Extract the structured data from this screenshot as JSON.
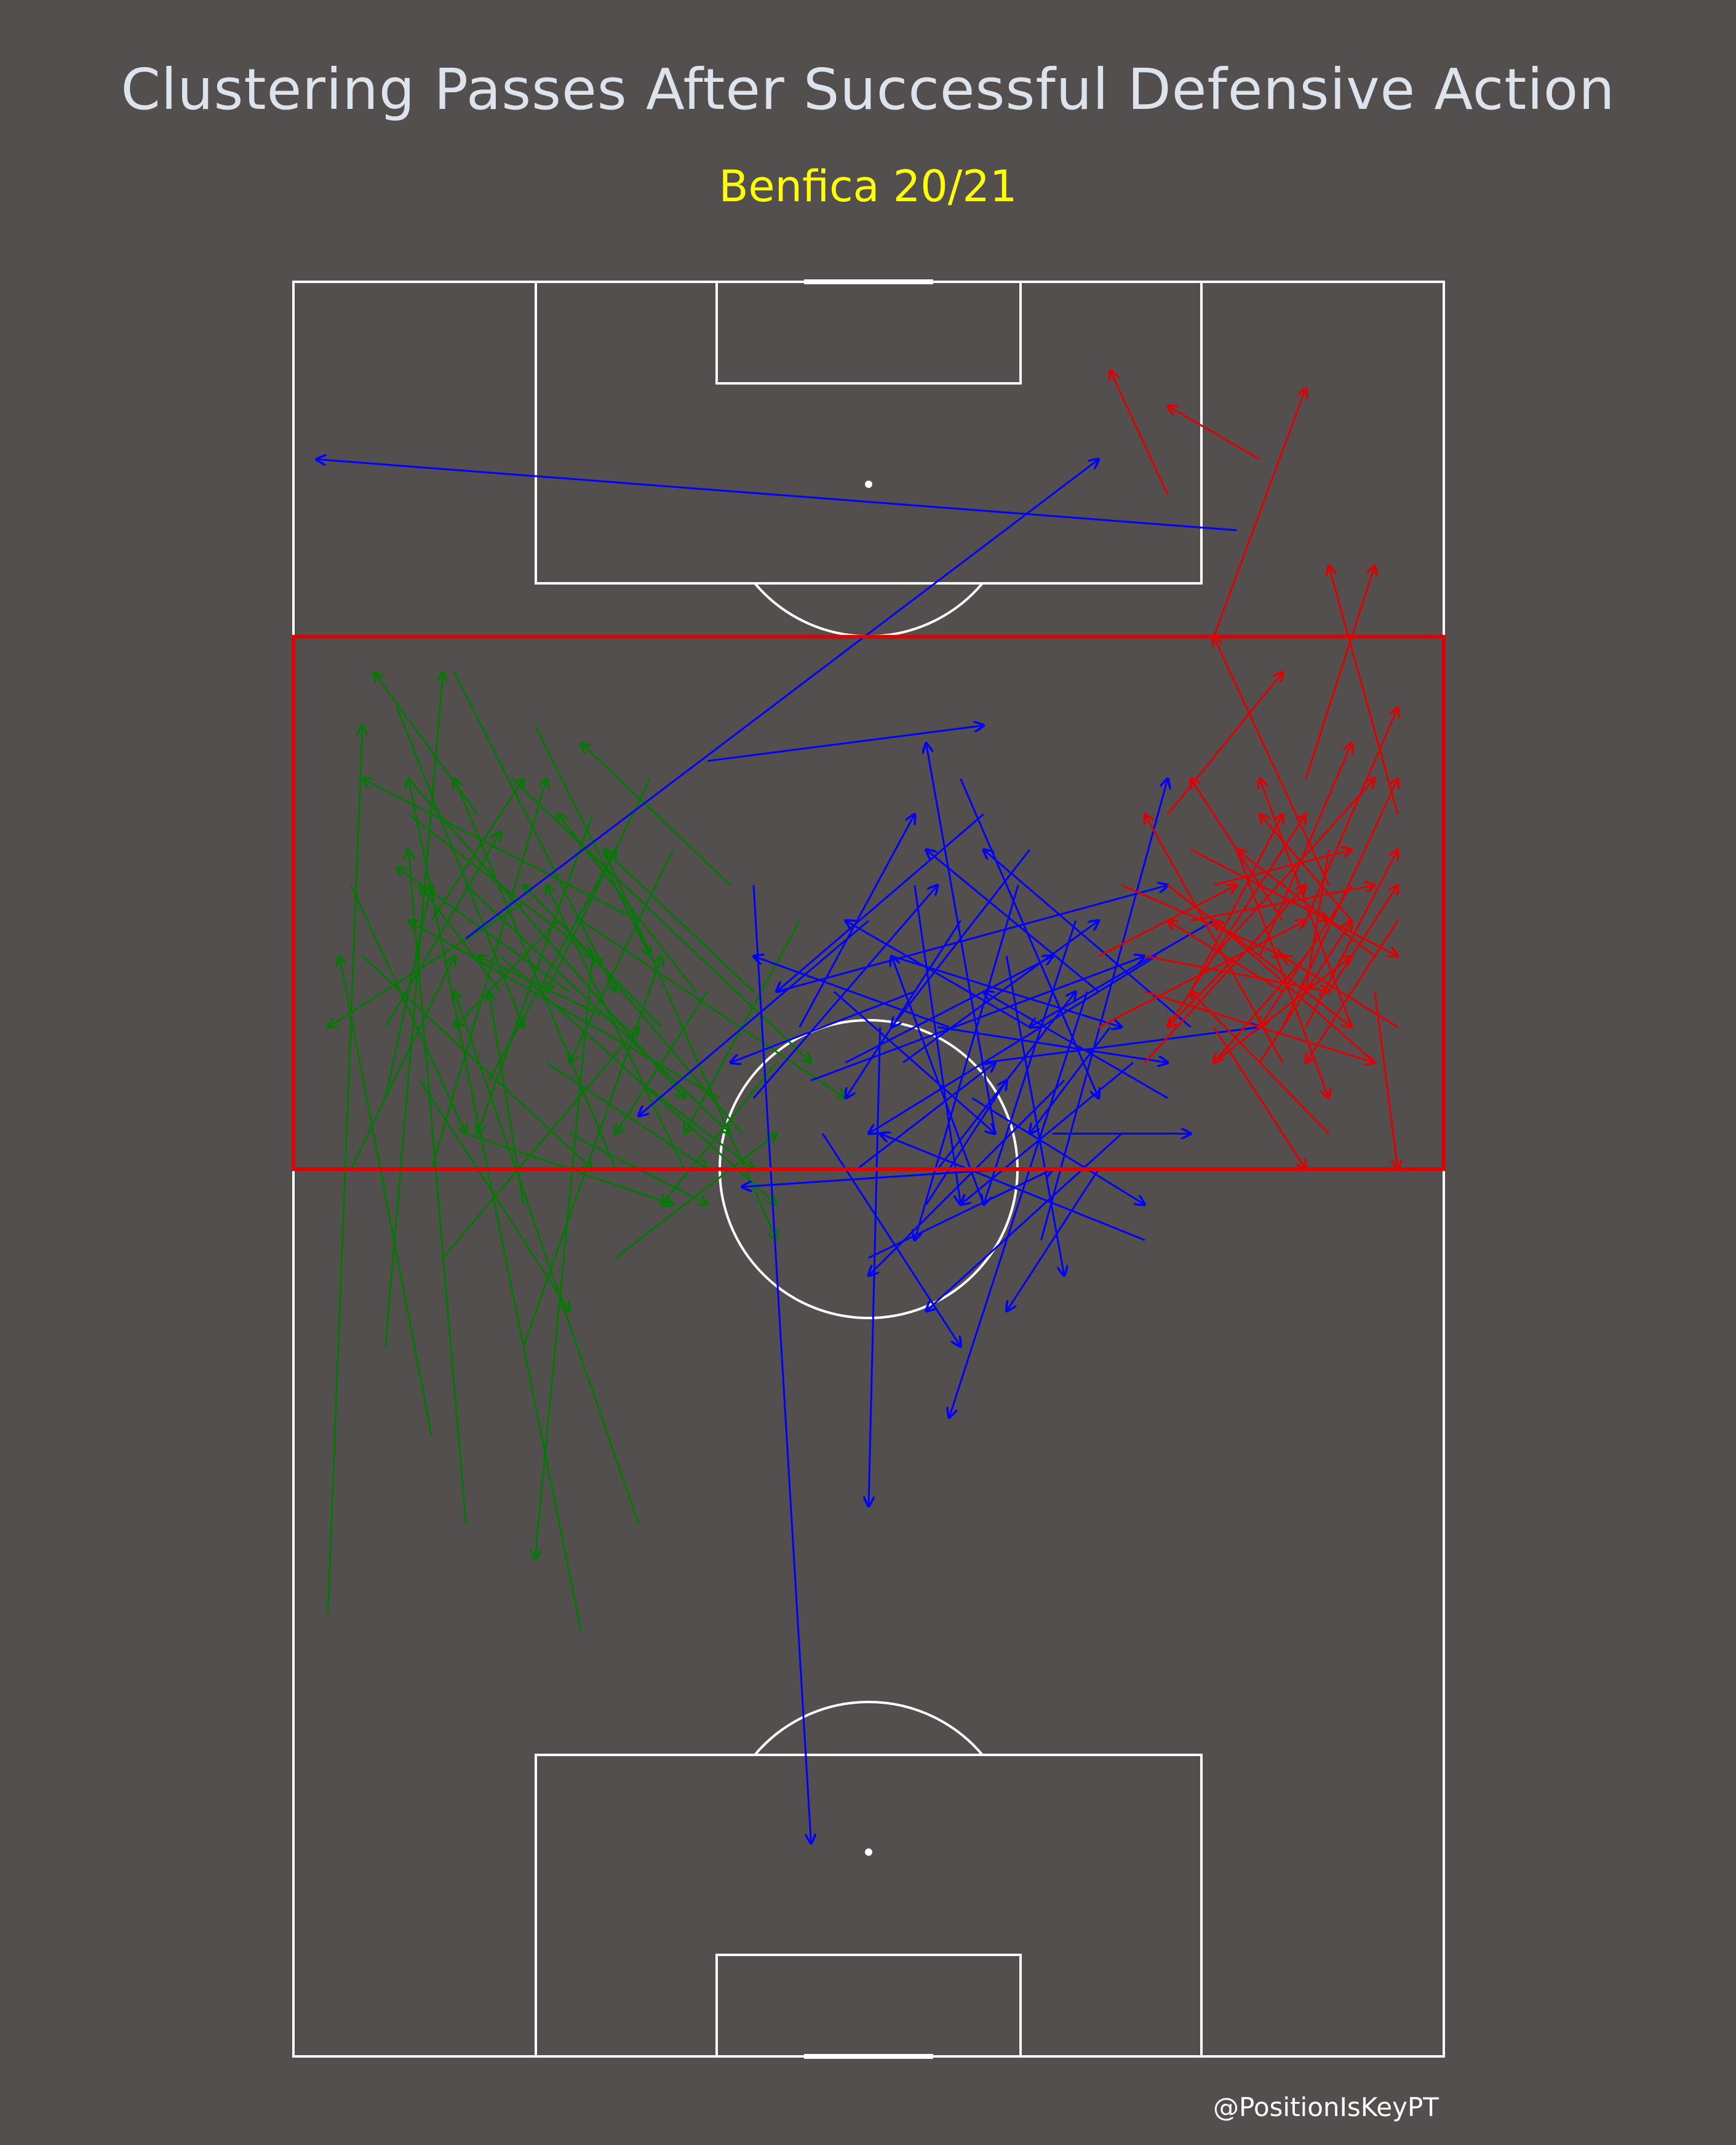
{
  "chart": {
    "title": "Clustering Passes After Successful Defensive Action",
    "subtitle": "Benfica 20/21",
    "credit": "@PositionIsKeyPT"
  },
  "colors": {
    "background": "#544f4f",
    "pitch_lines": "#ffffff",
    "title": "#dde3ea",
    "subtitle": "#ffff00",
    "zone": "#e00000"
  },
  "chart_data": {
    "type": "scatter",
    "pitch": {
      "width": 100,
      "length": 100,
      "orientation": "vertical, attacking upward"
    },
    "highlight_zone": {
      "x_range": [
        0,
        100
      ],
      "y_range": [
        50,
        80
      ]
    },
    "series": [
      {
        "color": "#007a00",
        "passes": [
          [
            3,
            25,
            6,
            75
          ],
          [
            12,
            35,
            4,
            62
          ],
          [
            8,
            40,
            13,
            78
          ],
          [
            15,
            30,
            10,
            68
          ],
          [
            5,
            50,
            14,
            62
          ],
          [
            25,
            24,
            10,
            72
          ],
          [
            8,
            58,
            18,
            69
          ],
          [
            20,
            65,
            3,
            58
          ],
          [
            12,
            50,
            22,
            72
          ],
          [
            30,
            30,
            14,
            60
          ],
          [
            16,
            70,
            7,
            78
          ],
          [
            6,
            62,
            26,
            50
          ],
          [
            17,
            55,
            28,
            68
          ],
          [
            10,
            72,
            34,
            54
          ],
          [
            24,
            60,
            9,
            67
          ],
          [
            13,
            45,
            30,
            58
          ],
          [
            28,
            50,
            14,
            72
          ],
          [
            20,
            40,
            32,
            62
          ],
          [
            5,
            66,
            15,
            52
          ],
          [
            30,
            64,
            6,
            72
          ],
          [
            22,
            56,
            36,
            50
          ],
          [
            9,
            76,
            20,
            58
          ],
          [
            26,
            70,
            16,
            52
          ],
          [
            14,
            78,
            28,
            60
          ],
          [
            32,
            58,
            20,
            66
          ],
          [
            18,
            62,
            42,
            48
          ],
          [
            11,
            55,
            24,
            42
          ],
          [
            27,
            68,
            42,
            46
          ],
          [
            35,
            60,
            23,
            70
          ],
          [
            15,
            66,
            38,
            52
          ],
          [
            8,
            54,
            12,
            66
          ],
          [
            21,
            75,
            31,
            62
          ],
          [
            26,
            62,
            21,
            28
          ],
          [
            37,
            54,
            10,
            64
          ],
          [
            20,
            48,
            17,
            60
          ],
          [
            30,
            55,
            40,
            50
          ],
          [
            12,
            64,
            20,
            72
          ],
          [
            33,
            68,
            24,
            56
          ],
          [
            24,
            52,
            36,
            48
          ],
          [
            19,
            72,
            45,
            56
          ],
          [
            40,
            60,
            27,
            68
          ],
          [
            29,
            58,
            16,
            62
          ],
          [
            34,
            50,
            22,
            66
          ],
          [
            10,
            70,
            26,
            62
          ],
          [
            42,
            56,
            32,
            48
          ],
          [
            23,
            64,
            14,
            58
          ],
          [
            38,
            66,
            25,
            74
          ],
          [
            15,
            52,
            33,
            48
          ],
          [
            31,
            72,
            22,
            60
          ],
          [
            28,
            45,
            42,
            52
          ],
          [
            25,
            64,
            48,
            54
          ],
          [
            36,
            60,
            28,
            52
          ],
          [
            18,
            60,
            11,
            66
          ],
          [
            39,
            52,
            26,
            62
          ],
          [
            44,
            64,
            34,
            52
          ]
        ]
      },
      {
        "color": "#0000ff",
        "passes": [
          [
            40,
            66,
            45,
            12
          ],
          [
            51,
            58,
            50,
            31
          ],
          [
            82,
            86,
            2,
            90
          ],
          [
            15,
            63,
            70,
            90
          ],
          [
            36,
            73,
            60,
            75
          ],
          [
            50,
            64,
            30,
            53
          ],
          [
            62,
            50,
            39,
            49
          ],
          [
            74,
            46,
            51,
            52
          ],
          [
            48,
            56,
            66,
            62
          ],
          [
            60,
            70,
            42,
            60
          ],
          [
            70,
            60,
            55,
            68
          ],
          [
            45,
            55,
            74,
            62
          ],
          [
            55,
            48,
            62,
            55
          ],
          [
            67,
            55,
            50,
            44
          ],
          [
            78,
            58,
            60,
            68
          ],
          [
            58,
            72,
            70,
            54
          ],
          [
            50,
            45,
            66,
            50
          ],
          [
            64,
            58,
            48,
            64
          ],
          [
            42,
            60,
            76,
            66
          ],
          [
            72,
            52,
            55,
            42
          ],
          [
            54,
            60,
            38,
            56
          ],
          [
            68,
            64,
            60,
            48
          ],
          [
            60,
            56,
            84,
            58
          ],
          [
            46,
            52,
            58,
            40
          ],
          [
            75,
            62,
            50,
            52
          ],
          [
            56,
            50,
            68,
            60
          ],
          [
            63,
            66,
            54,
            46
          ],
          [
            40,
            54,
            56,
            66
          ],
          [
            70,
            50,
            62,
            42
          ],
          [
            52,
            62,
            72,
            58
          ],
          [
            65,
            46,
            76,
            72
          ],
          [
            57,
            58,
            40,
            62
          ],
          [
            80,
            64,
            64,
            58
          ],
          [
            49,
            50,
            61,
            56
          ],
          [
            73,
            56,
            58,
            48
          ],
          [
            58,
            64,
            48,
            54
          ],
          [
            66,
            52,
            78,
            52
          ],
          [
            44,
            58,
            54,
            70
          ],
          [
            62,
            62,
            67,
            44
          ],
          [
            76,
            54,
            60,
            60
          ],
          [
            53,
            56,
            70,
            64
          ],
          [
            60,
            48,
            52,
            62
          ],
          [
            69,
            60,
            57,
            36
          ],
          [
            47,
            60,
            61,
            52
          ],
          [
            59,
            54,
            74,
            48
          ],
          [
            64,
            68,
            52,
            58
          ],
          [
            56,
            58,
            76,
            56
          ],
          [
            61,
            52,
            55,
            74
          ],
          [
            71,
            58,
            64,
            52
          ],
          [
            54,
            66,
            58,
            48
          ]
        ]
      },
      {
        "color": "#e00000",
        "passes": [
          [
            76,
            88,
            71,
            95
          ],
          [
            84,
            90,
            76,
            93
          ],
          [
            80,
            80,
            88,
            94
          ],
          [
            94,
            60,
            96,
            50
          ],
          [
            88,
            72,
            94,
            84
          ],
          [
            76,
            70,
            86,
            78
          ],
          [
            84,
            62,
            92,
            74
          ],
          [
            90,
            66,
            80,
            80
          ],
          [
            70,
            58,
            88,
            64
          ],
          [
            96,
            70,
            90,
            84
          ],
          [
            78,
            64,
            94,
            66
          ],
          [
            86,
            56,
            74,
            70
          ],
          [
            92,
            58,
            84,
            72
          ],
          [
            74,
            62,
            90,
            60
          ],
          [
            88,
            64,
            96,
            76
          ],
          [
            80,
            56,
            92,
            62
          ],
          [
            94,
            62,
            82,
            68
          ],
          [
            76,
            58,
            88,
            70
          ],
          [
            84,
            66,
            96,
            62
          ],
          [
            90,
            52,
            78,
            60
          ],
          [
            72,
            66,
            86,
            62
          ],
          [
            96,
            64,
            88,
            56
          ],
          [
            80,
            62,
            94,
            72
          ],
          [
            86,
            60,
            76,
            64
          ],
          [
            92,
            66,
            84,
            58
          ],
          [
            74,
            56,
            88,
            66
          ],
          [
            88,
            58,
            96,
            68
          ],
          [
            82,
            68,
            90,
            54
          ],
          [
            78,
            60,
            86,
            70
          ],
          [
            94,
            56,
            80,
            64
          ],
          [
            76,
            66,
            92,
            58
          ],
          [
            86,
            64,
            78,
            72
          ],
          [
            90,
            60,
            96,
            66
          ],
          [
            80,
            58,
            88,
            50
          ],
          [
            84,
            56,
            92,
            64
          ],
          [
            70,
            62,
            82,
            66
          ],
          [
            96,
            58,
            86,
            62
          ],
          [
            78,
            68,
            90,
            64
          ],
          [
            88,
            62,
            80,
            56
          ],
          [
            92,
            64,
            84,
            70
          ],
          [
            74,
            60,
            94,
            56
          ],
          [
            86,
            58,
            96,
            72
          ],
          [
            82,
            62,
            76,
            58
          ],
          [
            90,
            68,
            88,
            60
          ],
          [
            80,
            66,
            92,
            68
          ]
        ]
      }
    ]
  }
}
